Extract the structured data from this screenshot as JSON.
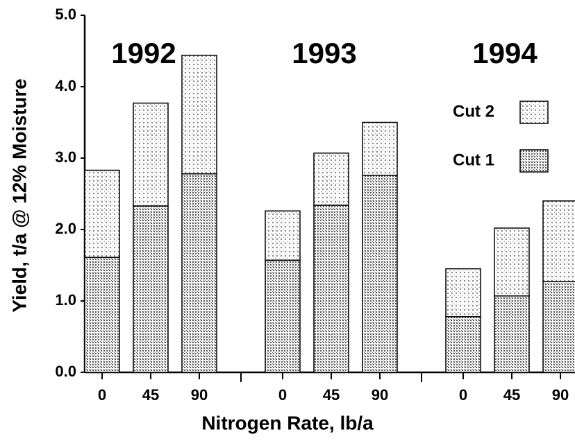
{
  "chart_data": {
    "type": "stacked-bar",
    "x_label": "Nitrogen Rate, lb/a",
    "y_label": "Yield, t/a @ 12% Moisture",
    "groups": [
      "1992",
      "1993",
      "1994"
    ],
    "categories": [
      "0",
      "45",
      "90",
      "0",
      "45",
      "90",
      "0",
      "45",
      "90"
    ],
    "series": [
      {
        "name": "Cut 1",
        "color": "#444444",
        "values": [
          1.61,
          2.33,
          2.78,
          1.57,
          2.34,
          2.76,
          0.78,
          1.07,
          1.27
        ]
      },
      {
        "name": "Cut 2",
        "color": "#888888",
        "values": [
          1.22,
          1.44,
          1.66,
          0.69,
          0.73,
          0.74,
          0.67,
          0.95,
          1.13
        ]
      }
    ],
    "ylim": [
      0,
      5
    ],
    "yticks": [
      {
        "value": 0,
        "label": "0.0"
      },
      {
        "value": 1,
        "label": "1.0"
      },
      {
        "value": 2,
        "label": "2.0"
      },
      {
        "value": 3,
        "label": "3.0"
      },
      {
        "value": 4,
        "label": "4.0"
      },
      {
        "value": 5,
        "label": "5.0"
      }
    ],
    "grid": false
  }
}
